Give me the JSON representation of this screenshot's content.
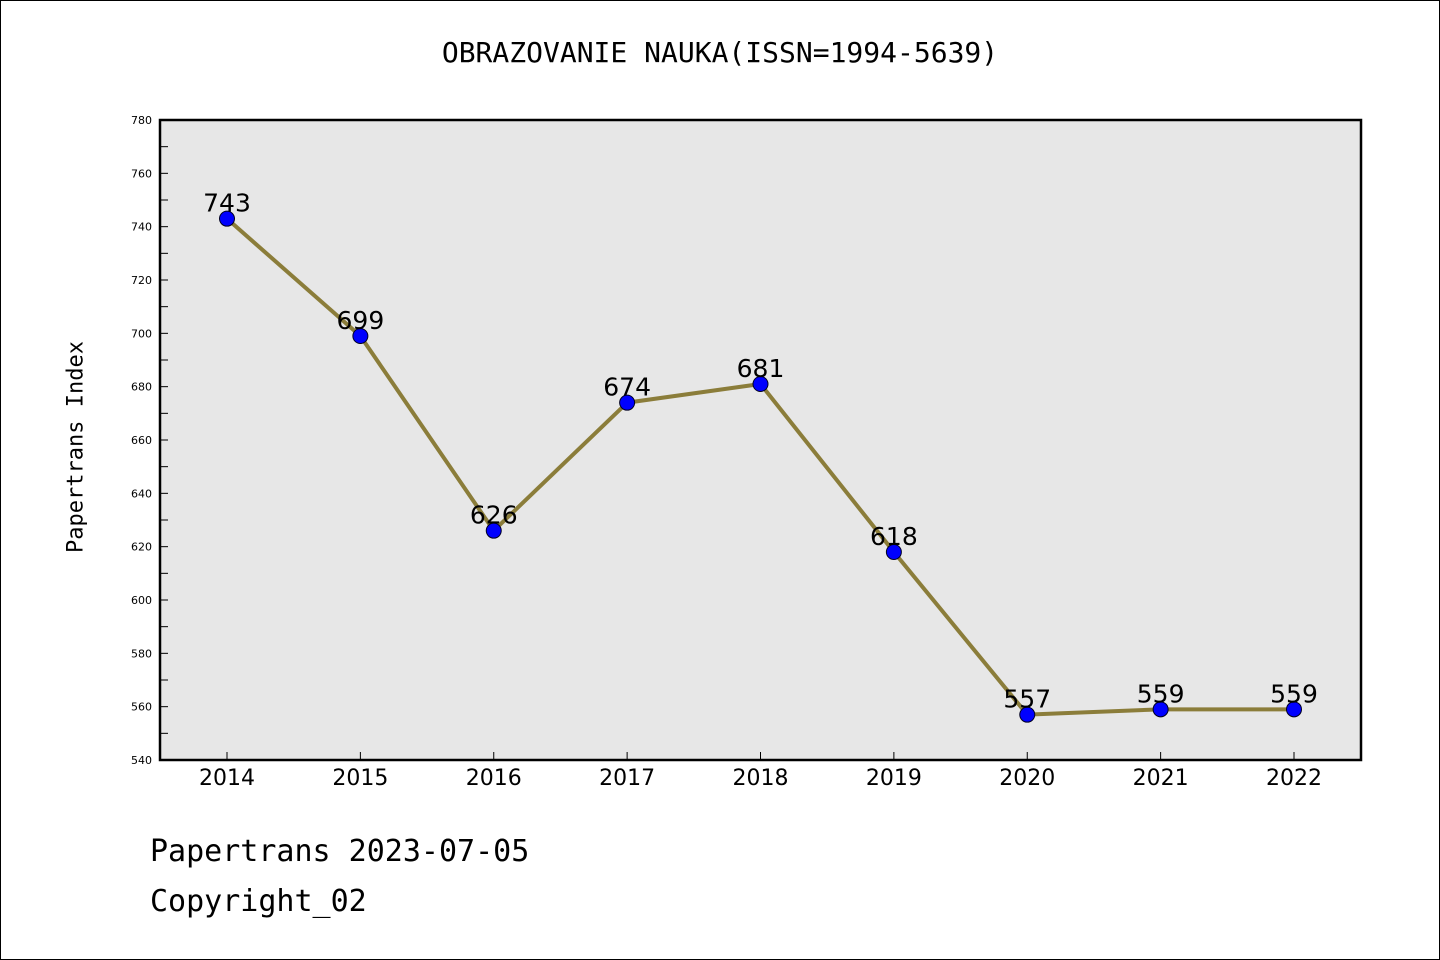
{
  "chart_data": {
    "type": "line",
    "title": "OBRAZOVANIE NAUKA(ISSN=1994-5639)",
    "xlabel": "",
    "ylabel": "Papertrans Index",
    "categories": [
      "2014",
      "2015",
      "2016",
      "2017",
      "2018",
      "2019",
      "2020",
      "2021",
      "2022"
    ],
    "values": [
      743,
      699,
      626,
      674,
      681,
      618,
      557,
      559,
      559
    ],
    "data_labels": [
      "743",
      "699",
      "626",
      "674",
      "681",
      "618",
      "557",
      "559",
      "559"
    ],
    "ylim": [
      540,
      780
    ],
    "yticks": [
      540,
      560,
      580,
      600,
      620,
      640,
      660,
      680,
      700,
      720,
      740,
      760,
      780
    ],
    "ytick_labels": [
      "540",
      "560",
      "580",
      "600",
      "620",
      "640",
      "660",
      "680",
      "700",
      "720",
      "740",
      "760",
      "780"
    ],
    "grid": false,
    "plot_background": "#e7e7e7",
    "line_color": "#8b7d3a",
    "marker_color": "#0000ff"
  },
  "footer": {
    "date_text": "Papertrans 2023-07-05",
    "copyright_text": "Copyright_02"
  }
}
